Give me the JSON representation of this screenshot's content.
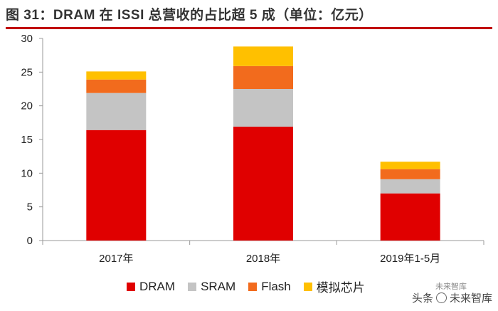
{
  "figure": {
    "title": "图 31：DRAM 在 ISSI 总营收的占比超 5 成（单位：亿元）",
    "watermark_prefix": "头条",
    "watermark_name": "未来智库",
    "watermark_source": "未来智库"
  },
  "colors": {
    "DRAM": "#e00000",
    "SRAM": "#c4c4c4",
    "Flash": "#f26b1d",
    "模拟芯片": "#ffc000",
    "rule": "#c00000"
  },
  "chart_data": {
    "type": "bar",
    "stacked": true,
    "title": "DRAM 在 ISSI 总营收的占比超 5 成（单位：亿元）",
    "xlabel": "",
    "ylabel": "",
    "ylim": [
      0,
      30
    ],
    "yticks": [
      0,
      5,
      10,
      15,
      20,
      25,
      30
    ],
    "grid": false,
    "legend_position": "bottom",
    "categories": [
      "2017年",
      "2018年",
      "2019年1-5月"
    ],
    "series": [
      {
        "name": "DRAM",
        "values": [
          16.4,
          16.9,
          7.0
        ]
      },
      {
        "name": "SRAM",
        "values": [
          5.5,
          5.6,
          2.1
        ]
      },
      {
        "name": "Flash",
        "values": [
          2.0,
          3.4,
          1.5
        ]
      },
      {
        "name": "模拟芯片",
        "values": [
          1.2,
          2.9,
          1.1
        ]
      }
    ]
  }
}
